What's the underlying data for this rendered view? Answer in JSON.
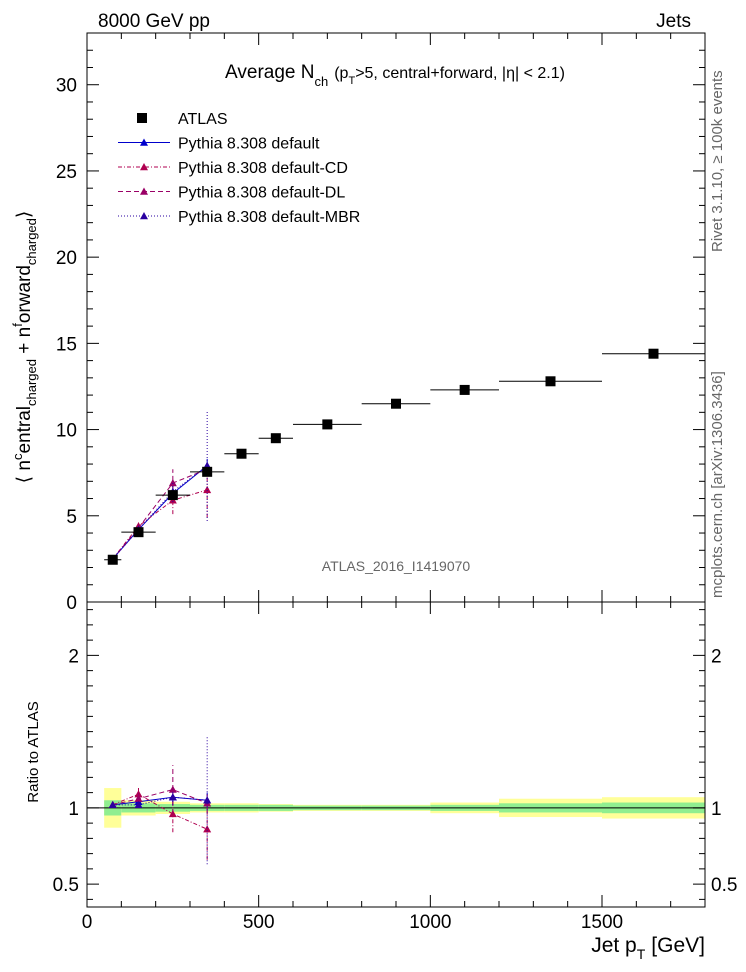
{
  "header": {
    "left": "8000 GeV pp",
    "right": "Jets"
  },
  "side_labels": {
    "rivet": "Rivet 3.1.10, ≥ 100k events",
    "mcplots": "mcplots.cern.ch [arXiv:1306.3436]"
  },
  "chart_data": {
    "type": "scatter",
    "title": "Average N_ch (p_T>5, central+forward, |η| < 2.1)",
    "title_main": "Average N",
    "title_sub": "ch",
    "title_rest": "(p",
    "title_rest_sub": "T",
    "title_rest2": ">5, central+forward, |η| < 2.1)",
    "analysis_label": "ATLAS_2016_I1419070",
    "xlabel": "Jet p_T [GeV]",
    "xlabel_main": "Jet p",
    "xlabel_sub": "T",
    "xlabel_unit": "[GeV]",
    "ylabel": "⟨ n^central_charged + n^forward_charged ⟩",
    "ylabel_parts": [
      "⟨ n",
      "c",
      "entral",
      "charged",
      " + n",
      "f",
      "orward",
      "charged",
      "⟩"
    ],
    "ratio_ylabel": "Ratio to ATLAS",
    "xlim": [
      0,
      1800
    ],
    "ylim": [
      0,
      33
    ],
    "ratio_ylim": [
      0.35,
      2.35
    ],
    "x_ticks": [
      0,
      500,
      1000,
      1500
    ],
    "x_tick_labels": [
      "0",
      "500",
      "1000",
      "1500"
    ],
    "y_ticks": [
      0,
      5,
      10,
      15,
      20,
      25,
      30
    ],
    "y_tick_labels": [
      "0",
      "5",
      "10",
      "15",
      "20",
      "25",
      "30"
    ],
    "ratio_ticks": [
      0.5,
      1,
      2
    ],
    "ratio_tick_labels": [
      "0.5",
      "1",
      "2"
    ],
    "legend": {
      "placement": "top-left",
      "entries": [
        "ATLAS",
        "Pythia 8.308 default",
        "Pythia 8.308 default-CD",
        "Pythia 8.308 default-DL",
        "Pythia 8.308 default-MBR"
      ]
    },
    "data": {
      "name": "ATLAS",
      "x": [
        75,
        150,
        250,
        350,
        450,
        550,
        700,
        900,
        1100,
        1350,
        1650
      ],
      "y": [
        2.45,
        4.05,
        6.2,
        7.55,
        8.6,
        9.5,
        10.3,
        11.5,
        12.3,
        12.8,
        14.4
      ],
      "bins": [
        [
          50,
          100
        ],
        [
          100,
          200
        ],
        [
          200,
          300
        ],
        [
          300,
          400
        ],
        [
          400,
          500
        ],
        [
          500,
          600
        ],
        [
          600,
          800
        ],
        [
          800,
          1000
        ],
        [
          1000,
          1200
        ],
        [
          1200,
          1500
        ],
        [
          1500,
          1800
        ]
      ],
      "ratio_band_inner": [
        0.05,
        0.03,
        0.025,
        0.02,
        0.02,
        0.02,
        0.015,
        0.015,
        0.02,
        0.03,
        0.035
      ],
      "ratio_band_outer": [
        0.13,
        0.05,
        0.04,
        0.03,
        0.03,
        0.025,
        0.02,
        0.02,
        0.035,
        0.06,
        0.07
      ]
    },
    "series": [
      {
        "name": "Pythia 8.308 default",
        "color": "#0000cc",
        "dash": "",
        "x": [
          75,
          150,
          250,
          350
        ],
        "y": [
          2.5,
          4.2,
          6.3,
          7.9
        ],
        "err": [
          0.05,
          0.15,
          0.5,
          0.4
        ],
        "ratio": [
          1.02,
          1.04,
          1.07,
          1.05
        ],
        "ratio_err": [
          0.01,
          0.02,
          0.05,
          0.05
        ]
      },
      {
        "name": "Pythia 8.308 default-CD",
        "color": "#b00050",
        "dash": "4,2,1,2",
        "x": [
          75,
          150,
          250,
          350
        ],
        "y": [
          2.5,
          4.4,
          5.9,
          6.5
        ],
        "err": [
          0.05,
          0.2,
          0.8,
          1.6
        ],
        "ratio": [
          1.02,
          1.09,
          0.96,
          0.86
        ],
        "ratio_err": [
          0.02,
          0.04,
          0.12,
          0.2
        ]
      },
      {
        "name": "Pythia 8.308 default-DL",
        "color": "#9a0066",
        "dash": "5,3",
        "x": [
          75,
          150,
          250,
          350
        ],
        "y": [
          2.5,
          4.3,
          6.9,
          7.7
        ],
        "err": [
          0.05,
          0.2,
          0.8,
          0.4
        ],
        "ratio": [
          1.02,
          1.06,
          1.12,
          1.03
        ],
        "ratio_err": [
          0.02,
          0.04,
          0.16,
          0.06
        ]
      },
      {
        "name": "Pythia 8.308 default-MBR",
        "color": "#2a00a0",
        "dash": "1,2",
        "x": [
          75,
          150,
          250,
          350
        ],
        "y": [
          2.5,
          4.2,
          6.4,
          7.9
        ],
        "err": [
          0.05,
          0.15,
          0.6,
          3.2
        ],
        "ratio": [
          1.02,
          1.02,
          1.07,
          1.05
        ],
        "ratio_err": [
          0.01,
          0.02,
          0.05,
          0.42
        ]
      }
    ]
  }
}
